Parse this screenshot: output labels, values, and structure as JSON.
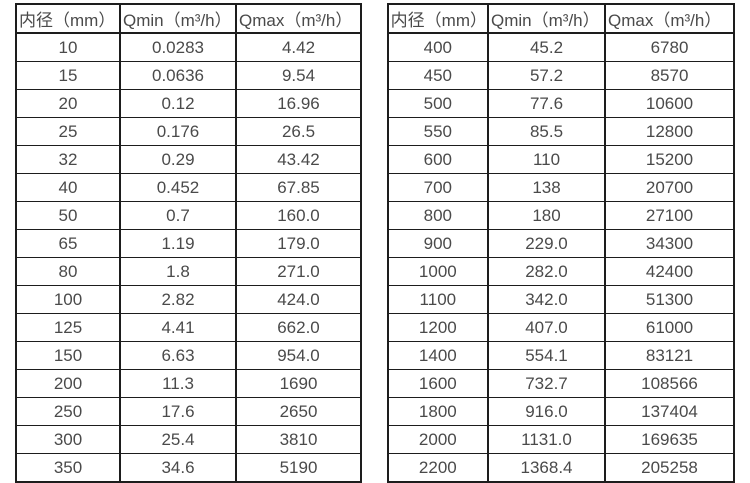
{
  "tables": [
    {
      "name": "flow-table-small-diameters",
      "headers": [
        "内径（mm）",
        "Qmin（m³/h）",
        "Qmax（m³/h）"
      ],
      "rows": [
        [
          "10",
          "0.0283",
          "4.42"
        ],
        [
          "15",
          "0.0636",
          "9.54"
        ],
        [
          "20",
          "0.12",
          "16.96"
        ],
        [
          "25",
          "0.176",
          "26.5"
        ],
        [
          "32",
          "0.29",
          "43.42"
        ],
        [
          "40",
          "0.452",
          "67.85"
        ],
        [
          "50",
          "0.7",
          "160.0"
        ],
        [
          "65",
          "1.19",
          "179.0"
        ],
        [
          "80",
          "1.8",
          "271.0"
        ],
        [
          "100",
          "2.82",
          "424.0"
        ],
        [
          "125",
          "4.41",
          "662.0"
        ],
        [
          "150",
          "6.63",
          "954.0"
        ],
        [
          "200",
          "11.3",
          "1690"
        ],
        [
          "250",
          "17.6",
          "2650"
        ],
        [
          "300",
          "25.4",
          "3810"
        ],
        [
          "350",
          "34.6",
          "5190"
        ]
      ]
    },
    {
      "name": "flow-table-large-diameters",
      "headers": [
        "内径（mm）",
        "Qmin（m³/h）",
        "Qmax（m³/h）"
      ],
      "rows": [
        [
          "400",
          "45.2",
          "6780"
        ],
        [
          "450",
          "57.2",
          "8570"
        ],
        [
          "500",
          "77.6",
          "10600"
        ],
        [
          "550",
          "85.5",
          "12800"
        ],
        [
          "600",
          "110",
          "15200"
        ],
        [
          "700",
          "138",
          "20700"
        ],
        [
          "800",
          "180",
          "27100"
        ],
        [
          "900",
          "229.0",
          "34300"
        ],
        [
          "1000",
          "282.0",
          "42400"
        ],
        [
          "1100",
          "342.0",
          "51300"
        ],
        [
          "1200",
          "407.0",
          "61000"
        ],
        [
          "1400",
          "554.1",
          "83121"
        ],
        [
          "1600",
          "732.7",
          "108566"
        ],
        [
          "1800",
          "916.0",
          "137404"
        ],
        [
          "2000",
          "1131.0",
          "169635"
        ],
        [
          "2200",
          "1368.4",
          "205258"
        ]
      ]
    }
  ],
  "colors": {
    "border": "#1d1d1d",
    "text": "#4a4a4a",
    "background": "#ffffff"
  }
}
